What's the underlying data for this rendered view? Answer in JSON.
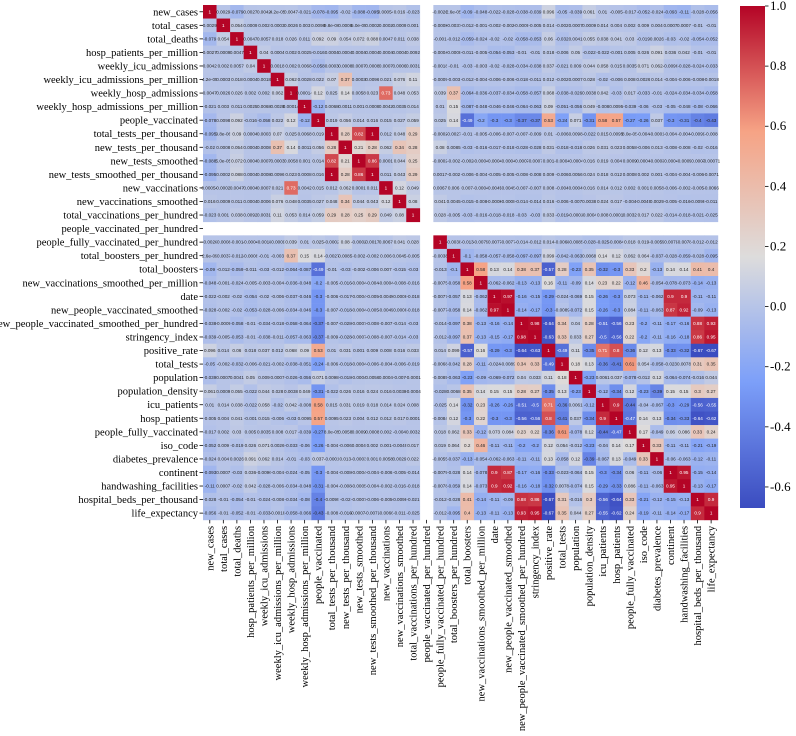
{
  "chart_data": {
    "type": "heatmap",
    "title": "",
    "colormap": "coolwarm",
    "color_range": [
      -0.67,
      1.0
    ],
    "colorbar_ticks": [
      1.0,
      0.8,
      0.6,
      0.4,
      0.2,
      0.0,
      -0.2,
      -0.4,
      -0.6
    ],
    "colorbar_tick_labels": [
      "1.0",
      "0.8",
      "0.6",
      "0.4",
      "0.2",
      "0.0",
      "-0.2",
      "-0.4",
      "-0.6"
    ],
    "annotated": true,
    "symmetric": true,
    "labels": [
      "new_cases",
      "total_cases",
      "total_deaths",
      "hosp_patients_per_million",
      "weekly_icu_admissions",
      "weekly_icu_admissions_per_million",
      "weekly_hosp_admissions",
      "weekly_hosp_admissions_per_million",
      "people_vaccinated",
      "total_tests_per_thousand",
      "new_tests_per_thousand",
      "new_tests_smoothed",
      "new_tests_smoothed_per_thousand",
      "new_vaccinations",
      "new_vaccinations_smoothed",
      "total_vaccinations_per_hundred",
      "people_vaccinated_per_hundred",
      "people_fully_vaccinated_per_hundred",
      "total_boosters_per_hundred",
      "total_boosters",
      "new_vaccinations_smoothed_per_million",
      "date",
      "new_people_vaccinated_smoothed",
      "new_people_vaccinated_smoothed_per_hundred",
      "stringency_index",
      "positive_rate",
      "total_tests",
      "population",
      "population_density",
      "icu_patients",
      "hosp_patients",
      "people_fully_vaccinated",
      "iso_code",
      "diabetes_prevalence",
      "continent",
      "handwashing_facilities",
      "hospital_beds_per_thousand",
      "life_expectancy"
    ],
    "upper_triangle_rows": [
      [
        1,
        0.0029,
        -0.079,
        0.0027,
        0.0042,
        4.2e-05,
        0.0047,
        -0.021,
        -0.078,
        -0.095,
        -0.02,
        -0.088,
        -0.095,
        0.00054,
        0.016,
        -0.023,
        null,
        -0.0026,
        2.6e-05,
        -0.09,
        -0.048,
        -0.022,
        -0.028,
        -0.038,
        -0.039,
        0.096,
        -0.05,
        -0.039,
        0.061,
        0.01,
        -0.005,
        -0.017,
        -0.052,
        -0.024,
        -0.093,
        -0.11,
        -0.028,
        -0.056
      ],
      [
        1,
        0.054,
        0.0009,
        0.002,
        0.0003,
        0.0026,
        0.003,
        0.0098,
        9.8e-06,
        0.0008,
        5e-05,
        0.0002,
        0.0002,
        0.0009,
        0.001,
        null,
        -0.0008,
        -0.0037,
        -0.012,
        -0.001,
        -0.002,
        -0.002,
        -0.0009,
        -0.005,
        0.014,
        -0.002,
        0.0007,
        0.0009,
        0.014,
        0.004,
        0.002,
        0.009,
        0.004,
        0.0007,
        0.0007,
        -0.01,
        -0.01
      ],
      [
        1,
        0.0047,
        0.0057,
        0.018,
        0.026,
        0.011,
        0.092,
        0.09,
        0.054,
        0.072,
        0.088,
        0.0047,
        0.011,
        0.038,
        null,
        -0.001,
        -0.012,
        -0.059,
        -0.024,
        -0.02,
        -0.02,
        -0.058,
        -0.053,
        0.06,
        -0.032,
        0.0041,
        0.055,
        0.038,
        0.041,
        0.03,
        -0.019,
        0.0026,
        -0.03,
        -0.02,
        -0.054,
        -0.052
      ],
      [
        1,
        0.04,
        0.0004,
        0.002,
        0.0025,
        -0.016,
        0.0004,
        0.0004,
        0.0004,
        0.0004,
        0.0004,
        0.0004,
        0.0092,
        null,
        -0.0004,
        -0.0008,
        -0.011,
        -0.005,
        -0.054,
        -0.053,
        -0.01,
        -0.01,
        0.018,
        -0.006,
        0.05,
        -0.022,
        -0.022,
        -0.001,
        0.005,
        0.026,
        0.091,
        0.036,
        0.042,
        -0.01,
        -0.01
      ],
      [
        1,
        0.0018,
        0.002,
        0.0068,
        -0.058,
        0.0003,
        0.0008,
        0.0007,
        0.0008,
        0.0007,
        0.0006,
        0.0031,
        null,
        -0.0018,
        -0.01,
        -0.03,
        -0.003,
        -0.02,
        -0.028,
        -0.034,
        -0.038,
        0.037,
        -0.021,
        0.009,
        0.044,
        0.058,
        0.015,
        0.0035,
        0.071,
        0.062,
        -0.0096,
        -0.028,
        -0.024,
        -0.033
      ],
      [
        1,
        0.062,
        0.0028,
        0.022,
        0.07,
        0.37,
        0.0003,
        0.0096,
        0.021,
        0.076,
        0.11,
        null,
        -0.0009,
        -0.003,
        -0.012,
        -0.004,
        -0.006,
        -0.006,
        -0.018,
        -0.011,
        0.012,
        -0.002,
        0.0007,
        0.028,
        -0.02,
        -0.006,
        0.008,
        0.0026,
        0.014,
        -0.004,
        -0.006,
        -0.008,
        -0.0018
      ],
      [
        1,
        0.00014,
        0.12,
        0.025,
        0.14,
        0.0058,
        0.023,
        0.73,
        0.048,
        0.053,
        null,
        0.039,
        0.37,
        -0.064,
        -0.036,
        -0.037,
        -0.034,
        -0.058,
        -0.057,
        0.068,
        -0.038,
        -0.026,
        0.0038,
        0.042,
        -0.03,
        0.017,
        -0.033,
        -0.01,
        -0.024,
        -0.034,
        -0.034,
        -0.058
      ],
      [
        1,
        -0.12,
        0.0068,
        0.0011,
        0.001,
        0.0008,
        0.0042,
        0.0035,
        0.014,
        null,
        0.01,
        0.15,
        -0.087,
        -0.048,
        -0.046,
        -0.046,
        -0.064,
        -0.063,
        0.09,
        -0.051,
        -0.056,
        0.049,
        -0.008,
        0.0095,
        -0.039,
        -0.06,
        -0.03,
        -0.05,
        -0.048,
        -0.08,
        -0.066
      ],
      [
        1,
        0.019,
        0.056,
        0.014,
        0.016,
        0.015,
        0.027,
        0.059,
        null,
        0.025,
        0.14,
        -0.49,
        -0.2,
        -0.3,
        -0.3,
        -0.37,
        -0.37,
        0.53,
        -0.24,
        0.071,
        -0.31,
        0.58,
        0.57,
        -0.27,
        -0.26,
        0.037,
        -0.3,
        -0.31,
        -0.4,
        -0.43
      ],
      [
        1,
        0.28,
        0.82,
        1,
        0.012,
        0.048,
        0.29,
        null,
        -0.0002,
        -0.0027,
        -0.01,
        -0.005,
        -0.006,
        -0.007,
        -0.007,
        -0.009,
        0.01,
        -0.006,
        0.0098,
        -0.022,
        0.015,
        0.0095,
        8e-05,
        -0.004,
        -0.0001,
        -0.004,
        -0.004,
        -0.0099,
        -0.008
      ],
      [
        1,
        0.21,
        0.28,
        0.062,
        0.34,
        0.28,
        null,
        0.08,
        0.0085,
        -0.03,
        -0.016,
        -0.017,
        -0.018,
        -0.028,
        -0.028,
        0.031,
        -0.018,
        -0.018,
        0.026,
        0.031,
        0.023,
        0.0058,
        -0.006,
        0.013,
        -0.008,
        -0.008,
        -0.02,
        -0.016
      ],
      [
        1,
        0.86,
        0.0001,
        0.044,
        0.25,
        null,
        -0.0002,
        -0.002,
        -0.002,
        -0.0004,
        -0.0004,
        -0.0004,
        -0.0007,
        -0.0007,
        0.001,
        -0.0004,
        -0.0004,
        0.016,
        0.019,
        0.004,
        0.0009,
        0.0004,
        -0.0003,
        -0.0004,
        -0.0005,
        -0.0007,
        -0.00071
      ],
      [
        1,
        0.011,
        0.043,
        0.29,
        null,
        0.0017,
        -0.002,
        -0.006,
        -0.004,
        -0.005,
        -0.005,
        -0.008,
        -0.008,
        0.009,
        -0.006,
        0.0056,
        0.024,
        0.018,
        0.012,
        0.0008,
        0.002,
        0.001,
        -0.004,
        -0.004,
        -0.006,
        -0.0071
      ],
      [
        1,
        0.12,
        0.049,
        null,
        0.0067,
        0.006,
        0.007,
        -0.0004,
        -0.0045,
        -0.0045,
        -0.007,
        -0.007,
        0.008,
        -0.004,
        0.0004,
        0.016,
        0.014,
        0.012,
        0.002,
        0.001,
        0.0058,
        -0.006,
        -0.002,
        -0.005,
        -0.0066
      ],
      [
        1,
        0.08,
        null,
        0.041,
        0.0045,
        -0.015,
        -0.008,
        -0.0008,
        -0.0008,
        -0.014,
        -0.014,
        0.016,
        -0.006,
        -0.007,
        0.0038,
        0.024,
        0.017,
        -0.004,
        -0.0049,
        0.0029,
        -0.005,
        -0.016,
        -0.0098,
        -0.011
      ],
      [
        1,
        null,
        0.028,
        -0.005,
        -0.03,
        -0.016,
        -0.018,
        -0.018,
        -0.03,
        -0.03,
        0.033,
        -0.019,
        -0.0001,
        -0.0004,
        0.008,
        0.0001,
        0.0032,
        0.017,
        0.022,
        -0.014,
        -0.018,
        -0.021,
        -0.025
      ],
      [
        null,
        null,
        null,
        null,
        null,
        null,
        null,
        null,
        null,
        null,
        null,
        null,
        null,
        null,
        null,
        null,
        null,
        null,
        null,
        null,
        null,
        null
      ],
      [
        1,
        -0.0038,
        -0.013,
        -0.0075,
        -0.0077,
        -0.0077,
        -0.014,
        -0.012,
        0.014,
        -0.0068,
        -0.0085,
        -0.028,
        -0.025,
        -0.0084,
        0.018,
        0.019,
        -0.0055,
        -0.0079,
        -0.0078,
        -0.012,
        -0.012
      ],
      [
        1,
        -0.1,
        -0.058,
        -0.057,
        -0.058,
        -0.097,
        -0.097,
        0.099,
        -0.042,
        -0.063,
        0.0068,
        0.14,
        0.12,
        0.062,
        0.064,
        -0.037,
        -0.028,
        -0.059,
        -0.028,
        -0.095
      ],
      [
        1,
        0.58,
        0.13,
        0.14,
        0.38,
        0.37,
        -0.57,
        0.28,
        -0.23,
        0.35,
        -0.32,
        -0.3,
        0.33,
        0.2,
        -0.13,
        0.14,
        0.14,
        0.41,
        0.4
      ],
      [
        1,
        -0.062,
        -0.062,
        -0.13,
        -0.13,
        0.16,
        -0.11,
        -0.09,
        0.14,
        0.23,
        0.22,
        -0.12,
        0.46,
        -0.054,
        -0.078,
        -0.073,
        -0.14,
        -0.13
      ],
      [
        1,
        0.97,
        -0.16,
        -0.15,
        -0.29,
        -0.024,
        -0.069,
        0.15,
        -0.26,
        -0.3,
        0.073,
        -0.11,
        -0.062,
        0.9,
        0.9,
        -0.11,
        -0.11
      ],
      [
        1,
        -0.14,
        -0.17,
        -0.3,
        -0.0089,
        -0.072,
        0.15,
        -0.26,
        -0.3,
        0.084,
        -0.11,
        -0.063,
        0.87,
        0.92,
        -0.09,
        -0.13
      ],
      [
        1,
        0.98,
        -0.64,
        0.34,
        0.04,
        0.28,
        -0.51,
        -0.56,
        0.23,
        -0.2,
        -0.11,
        -0.17,
        -0.16,
        0.88,
        0.93
      ],
      [
        1,
        -0.63,
        0.33,
        0.033,
        0.27,
        -0.5,
        -0.56,
        0.22,
        -0.2,
        -0.11,
        -0.16,
        -0.18,
        0.86,
        0.95
      ],
      [
        1,
        -0.49,
        0.11,
        -0.35,
        0.71,
        0.8,
        -0.36,
        0.12,
        0.13,
        -0.33,
        -0.32,
        -0.67,
        -0.67
      ],
      [
        1,
        0.18,
        0.13,
        -0.36,
        -0.41,
        0.61,
        0.054,
        -0.058,
        -0.023,
        0.0078,
        0.31,
        0.35
      ],
      [
        1,
        -0.23,
        0.0061,
        0.037,
        -0.078,
        -0.012,
        0.12,
        -0.064,
        -0.074,
        -0.016,
        0.044
      ],
      [
        1,
        -0.12,
        -0.34,
        0.12,
        -0.23,
        -0.39,
        0.15,
        0.15,
        0.3,
        0.27
      ],
      [
        1,
        0.9,
        -0.44,
        -0.04,
        -0.067,
        -0.3,
        -0.29,
        -0.56,
        -0.55
      ],
      [
        1,
        -0.47,
        0.14,
        0.13,
        -0.34,
        -0.33,
        -0.64,
        -0.62
      ],
      [
        1,
        0.17,
        -0.049,
        0.06,
        0.086,
        0.33,
        0.24
      ],
      [
        1,
        0.33,
        -0.11,
        -0.11,
        -0.21,
        -0.19
      ],
      [
        1,
        -0.06,
        -0.063,
        -0.12,
        -0.11
      ],
      [
        1,
        0.95,
        -0.15,
        -0.14
      ],
      [
        1,
        -0.13,
        -0.17
      ],
      [
        1,
        0.9
      ],
      [
        1
      ]
    ]
  }
}
